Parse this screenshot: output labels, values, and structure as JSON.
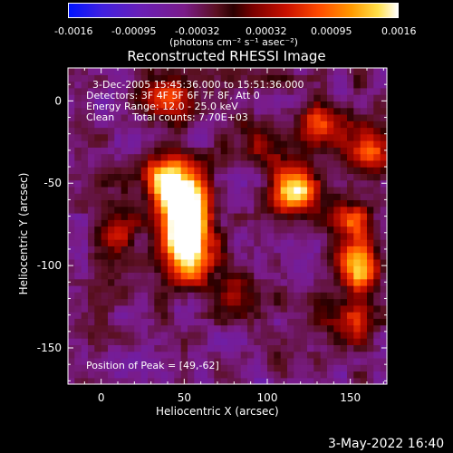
{
  "colorbar": {
    "ticks": [
      "-0.0016",
      "-0.00095",
      "-0.00032",
      "0.00032",
      "0.00095",
      "0.0016"
    ],
    "unit_label": "(photons cm⁻² s⁻¹ asec⁻²)"
  },
  "chart_data": {
    "type": "heatmap",
    "title": "Reconstructed RHESSI Image",
    "xlabel": "Heliocentric X (arcsec)",
    "ylabel": "Heliocentric Y (arcsec)",
    "xlim": [
      -20,
      172
    ],
    "ylim": [
      -172,
      20
    ],
    "xticks": [
      0,
      50,
      100,
      150
    ],
    "yticks": [
      0,
      -50,
      -100,
      -150
    ],
    "colorbar_range": [
      -0.0016,
      0.0016
    ],
    "annotations": {
      "time_range": "3-Dec-2005 15:45:36.000 to 15:51:36.000",
      "detectors": "Detectors: 3F 4F 5F 6F 7F 8F, Att 0",
      "energy": "Energy Range: 12.0 - 25.0 keV",
      "algorithm": "Clean",
      "total_counts": "Total counts: 7.70E+03",
      "peak": "Position of Peak = [49,-62]"
    },
    "sources": [
      {
        "x": 49,
        "y": -62,
        "intensity": 1.0
      },
      {
        "x": 52,
        "y": -88,
        "intensity": 0.85
      },
      {
        "x": 36,
        "y": -45,
        "intensity": 0.55
      },
      {
        "x": 118,
        "y": -54,
        "intensity": 0.8
      },
      {
        "x": 155,
        "y": -100,
        "intensity": 0.7
      },
      {
        "x": 162,
        "y": -30,
        "intensity": 0.6
      },
      {
        "x": 40,
        "y": 0,
        "intensity": 0.45
      },
      {
        "x": 10,
        "y": -75,
        "intensity": 0.4
      },
      {
        "x": 130,
        "y": -15,
        "intensity": 0.45
      },
      {
        "x": 150,
        "y": -72,
        "intensity": 0.5
      },
      {
        "x": 80,
        "y": -118,
        "intensity": 0.35
      },
      {
        "x": 150,
        "y": -135,
        "intensity": 0.35
      },
      {
        "x": 95,
        "y": -25,
        "intensity": 0.35
      }
    ]
  },
  "footer": {
    "timestamp": "3-May-2022 16:40"
  }
}
